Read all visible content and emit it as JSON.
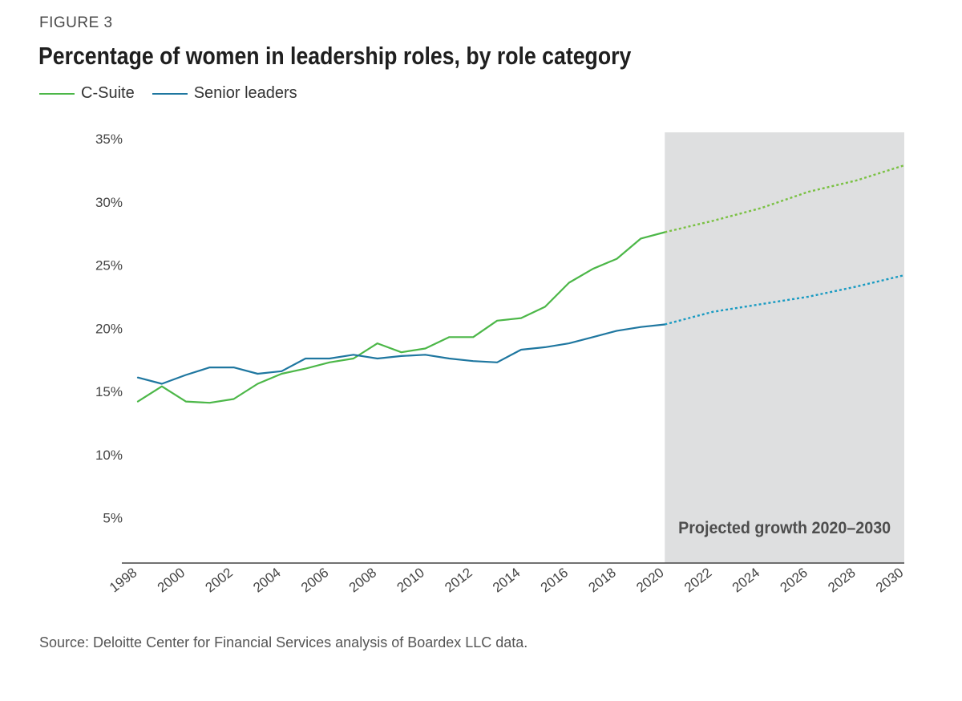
{
  "header": {
    "figure_label": "FIGURE 3",
    "title": "Percentage of women in leadership roles, by role category"
  },
  "colors": {
    "c_suite": "#4cb748",
    "c_suite_projection": "#7ac143",
    "senior_leaders": "#1f77a0",
    "senior_leaders_projection": "#1a9bc2",
    "projection_band": "#dedfe0",
    "axis": "#444444"
  },
  "chart_data": {
    "type": "line",
    "title": "Percentage of women in leadership roles, by role category",
    "xlabel": "",
    "ylabel": "",
    "xlim": [
      1998,
      2030
    ],
    "ylim": [
      1.5,
      35
    ],
    "y_ticks": [
      5,
      10,
      15,
      20,
      25,
      30,
      35
    ],
    "y_tick_labels": [
      "5%",
      "10%",
      "15%",
      "20%",
      "25%",
      "30%",
      "35%"
    ],
    "x_ticks": [
      1998,
      2000,
      2002,
      2004,
      2006,
      2008,
      2010,
      2012,
      2014,
      2016,
      2018,
      2020,
      2022,
      2024,
      2026,
      2028,
      2030
    ],
    "x_tick_labels": [
      "1998",
      "2000",
      "2002",
      "2004",
      "2006",
      "2008",
      "2010",
      "2012",
      "2014",
      "2016",
      "2018",
      "2020",
      "2022",
      "2024",
      "2026",
      "2028",
      "2030"
    ],
    "grid": false,
    "legend_position": "top-left",
    "projection_region": {
      "x_start": 2020,
      "x_end": 2030,
      "label": "Projected growth 2020–2030"
    },
    "series": [
      {
        "name": "C-Suite",
        "actual": {
          "x": [
            1998,
            1999,
            2000,
            2001,
            2002,
            2003,
            2004,
            2005,
            2006,
            2007,
            2008,
            2009,
            2010,
            2011,
            2012,
            2013,
            2014,
            2015,
            2016,
            2017,
            2018,
            2019,
            2020
          ],
          "y": [
            14.2,
            15.4,
            14.2,
            14.1,
            14.4,
            15.6,
            16.4,
            16.8,
            17.3,
            17.6,
            18.8,
            18.1,
            18.4,
            19.3,
            19.3,
            20.6,
            20.8,
            21.7,
            23.6,
            24.7,
            25.5,
            27.1,
            27.6
          ]
        },
        "projected": {
          "x": [
            2020,
            2022,
            2024,
            2026,
            2028,
            2030
          ],
          "y": [
            27.6,
            28.5,
            29.5,
            30.8,
            31.7,
            32.9
          ]
        }
      },
      {
        "name": "Senior leaders",
        "actual": {
          "x": [
            1998,
            1999,
            2000,
            2001,
            2002,
            2003,
            2004,
            2005,
            2006,
            2007,
            2008,
            2009,
            2010,
            2011,
            2012,
            2013,
            2014,
            2015,
            2016,
            2017,
            2018,
            2019,
            2020
          ],
          "y": [
            16.1,
            15.6,
            16.3,
            16.9,
            16.9,
            16.4,
            16.6,
            17.6,
            17.6,
            17.9,
            17.6,
            17.8,
            17.9,
            17.6,
            17.4,
            17.3,
            18.3,
            18.5,
            18.8,
            19.3,
            19.8,
            20.1,
            20.3
          ]
        },
        "projected": {
          "x": [
            2020,
            2022,
            2024,
            2026,
            2028,
            2030
          ],
          "y": [
            20.3,
            21.3,
            21.9,
            22.5,
            23.3,
            24.2
          ]
        }
      }
    ]
  },
  "footer": {
    "source": "Source: Deloitte Center for Financial Services analysis of Boardex LLC data."
  }
}
